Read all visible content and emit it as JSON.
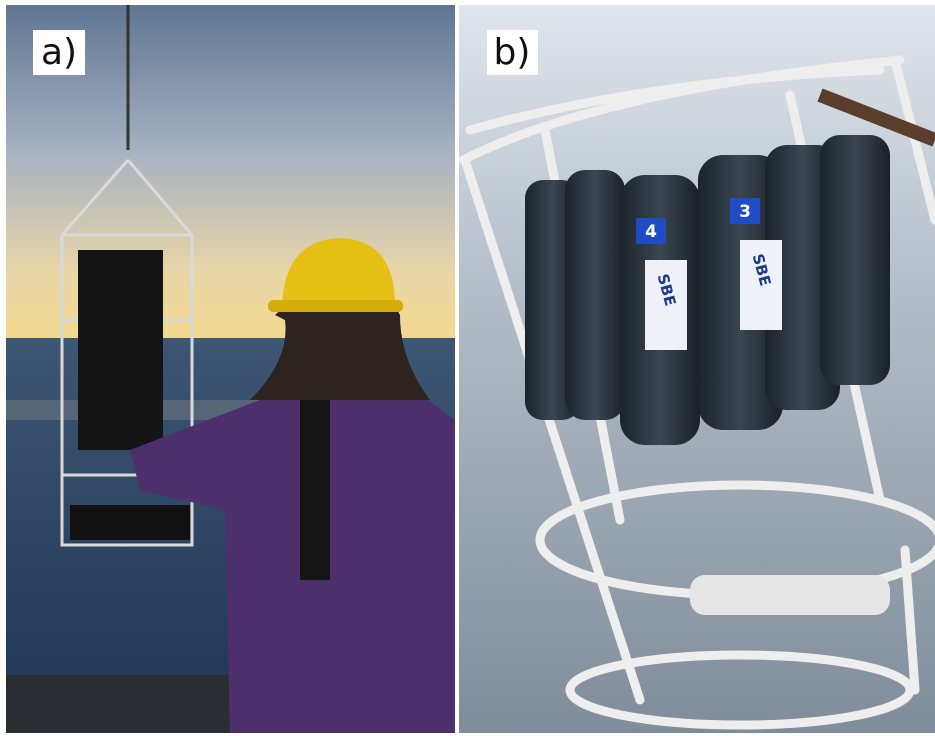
{
  "panels": [
    {
      "label": "a)"
    },
    {
      "label": "b)"
    }
  ],
  "bottles": [
    {
      "number": "4",
      "brand": "SBE"
    },
    {
      "number": "3",
      "brand": "SBE"
    }
  ]
}
